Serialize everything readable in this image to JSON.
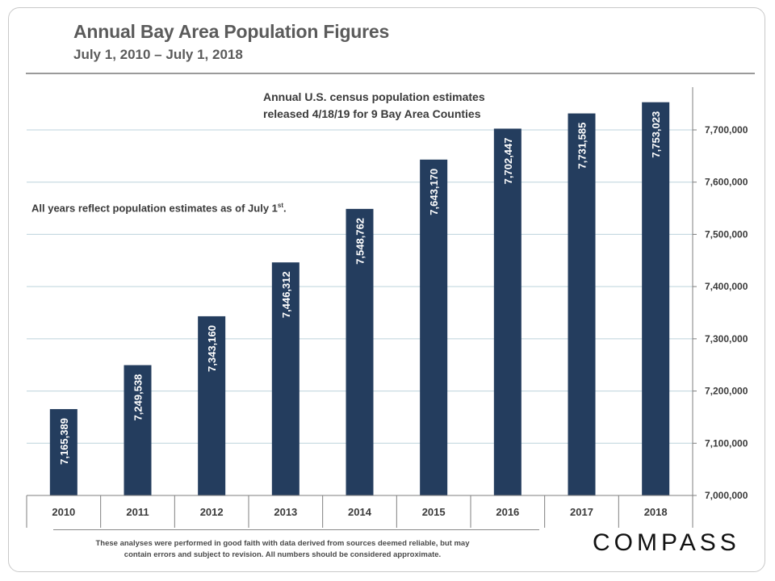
{
  "header": {
    "title": "Annual Bay Area Population Figures",
    "subtitle": "July 1, 2010 – July 1, 2018"
  },
  "annotations": {
    "census_line1": "Annual U.S. census population  estimates",
    "census_line2": "released 4/18/19 for 9 Bay Area Counties",
    "july_text": "All years reflect population estimates as of July 1",
    "july_sup": "st",
    "july_end": "."
  },
  "footer": {
    "disclaimer_line1": "These analyses were performed  in good faith with data derived from sources deemed reliable, but may",
    "disclaimer_line2": "contain errors and subject to revision.  All numbers should be considered approximate.",
    "logo": "COMPASS"
  },
  "colors": {
    "bar": "#243d5e",
    "grid": "#bcd3dc",
    "axis": "#7f7f7f"
  },
  "chart_data": {
    "type": "bar",
    "title": "Annual Bay Area Population Figures",
    "categories": [
      "2010",
      "2011",
      "2012",
      "2013",
      "2014",
      "2015",
      "2016",
      "2017",
      "2018"
    ],
    "values": [
      7165389,
      7249538,
      7343160,
      7446312,
      7548762,
      7643170,
      7702447,
      7731585,
      7753023
    ],
    "value_labels": [
      "7,165,389",
      "7,249,538",
      "7,343,160",
      "7,446,312",
      "7,548,762",
      "7,643,170",
      "7,702,447",
      "7,731,585",
      "7,753,023"
    ],
    "ylim": [
      7000000,
      7775000
    ],
    "yticks": [
      7000000,
      7100000,
      7200000,
      7300000,
      7400000,
      7500000,
      7600000,
      7700000
    ],
    "ytick_labels": [
      "7,000,000",
      "7,100,000",
      "7,200,000",
      "7,300,000",
      "7,400,000",
      "7,500,000",
      "7,600,000",
      "7,700,000"
    ],
    "y_axis_side": "right",
    "grid": true,
    "xlabel": "",
    "ylabel": ""
  }
}
